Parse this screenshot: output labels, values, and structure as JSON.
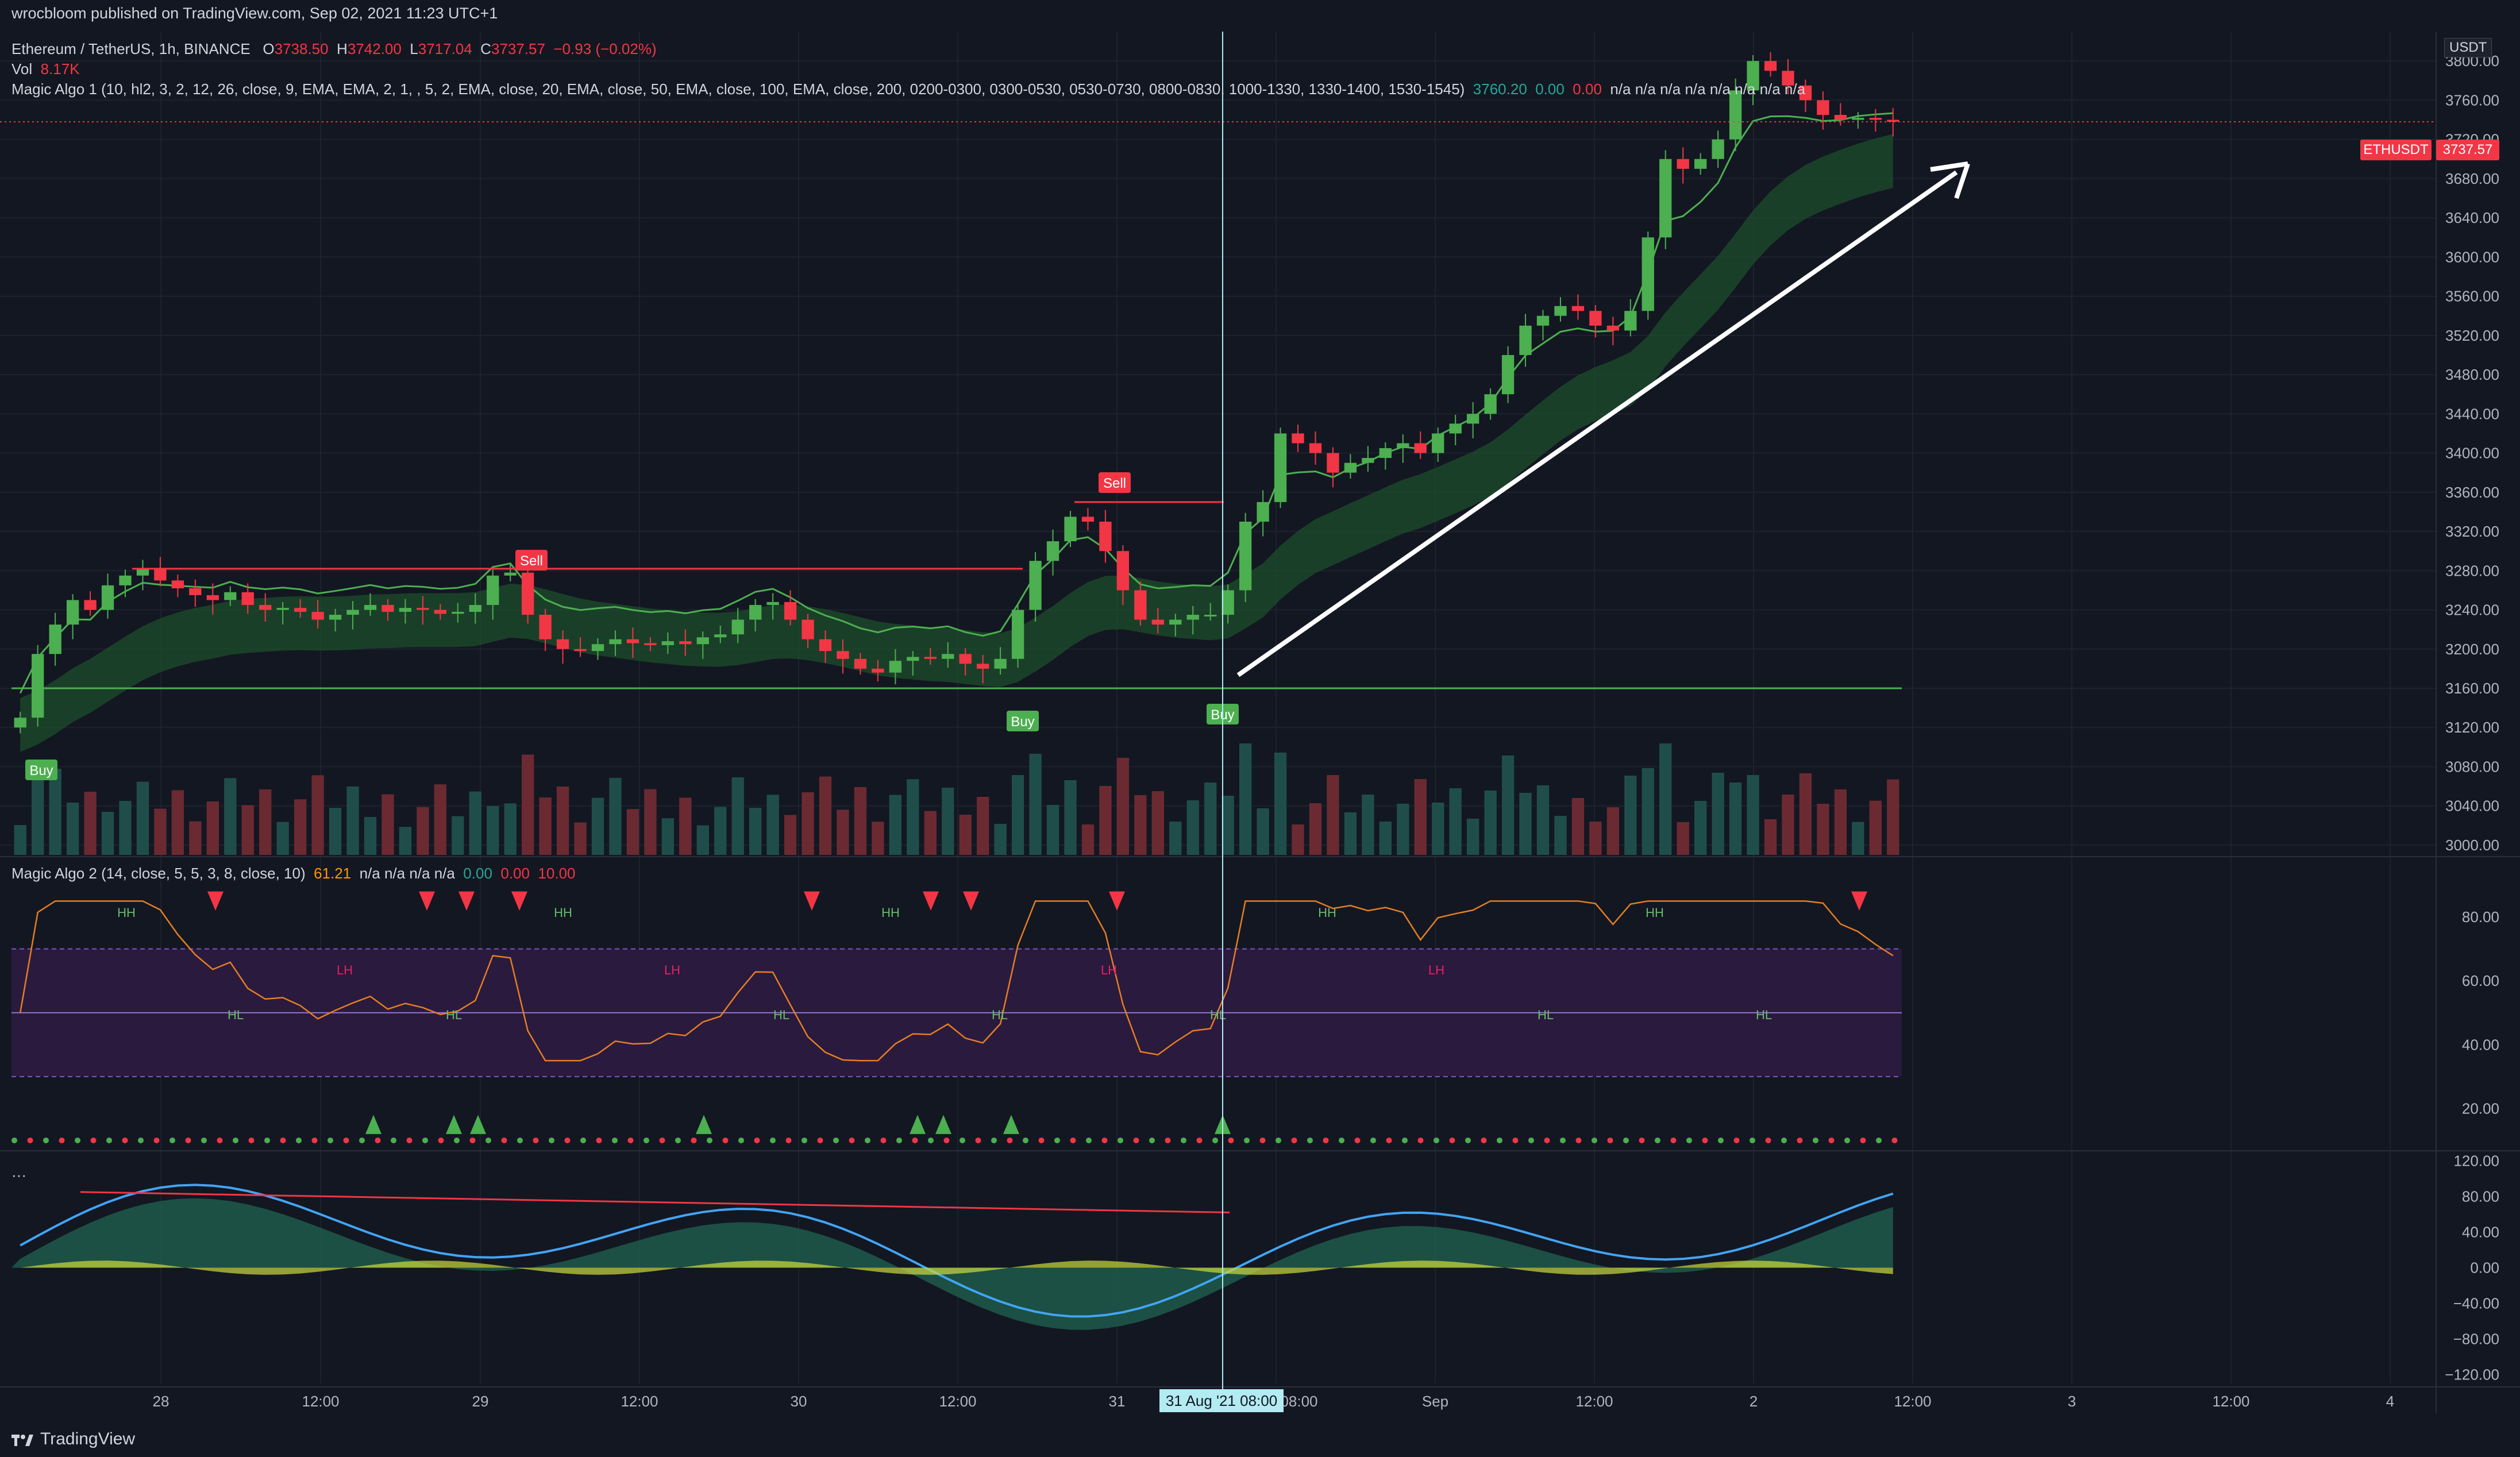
{
  "publisher_line": "wrocbloom published on TradingView.com, Sep 02, 2021 11:23 UTC+1",
  "legend": {
    "symbol": "Ethereum / TetherUS, 1h, BINANCE",
    "o_label": "O",
    "o_val": "3738.50",
    "h_label": "H",
    "h_val": "3742.00",
    "l_label": "L",
    "l_val": "3717.04",
    "c_label": "C",
    "c_val": "3737.57",
    "change": "−0.93 (−0.02%)",
    "vol_label": "Vol",
    "vol_val": "8.17K",
    "algo1": "Magic Algo 1 (10, hl2, 3, 2, 12, 26, close, 9, EMA, EMA, 2, 1, , 5, 2, EMA, close, 20, EMA, close, 50, EMA, close, 100, EMA, close, 200, 0200-0300, 0300-0530, 0530-0730, 0800-0830, 1000-1330, 1330-1400, 1530-1545)",
    "algo1_v1": "3760.20",
    "algo1_v2": "0.00",
    "algo1_v3": "0.00",
    "algo1_na": "n/a n/a n/a n/a n/a n/a n/a n/a",
    "algo2": "Magic Algo 2 (14, close, 5, 5, 3, 8, close, 10)",
    "algo2_v1": "61.21",
    "algo2_na": "n/a n/a n/a n/a",
    "algo2_v2": "0.00",
    "algo2_v3": "0.00",
    "algo2_v4": "10.00",
    "more": "···"
  },
  "brand": "TradingView",
  "currency": "USDT",
  "ticker_label": "ETHUSDT",
  "last_price": "3737.57",
  "crosshair_label": "31 Aug '21   08:00",
  "colors": {
    "bull": "#26a69a",
    "bear": "#ef5350",
    "candle_up": "#4caf50",
    "candle_down": "#f23645",
    "bg": "#131722",
    "grid": "#1e222d",
    "purple": "#2a1a3e"
  },
  "chart_data": {
    "type": "candlestick",
    "symbol": "ETHUSDT",
    "interval": "1h",
    "price_axis": {
      "ticks": [
        3000,
        3040,
        3080,
        3120,
        3160,
        3200,
        3240,
        3280,
        3320,
        3360,
        3400,
        3440,
        3480,
        3520,
        3560,
        3600,
        3640,
        3680,
        3720,
        3760,
        3800
      ],
      "ylim": [
        2990,
        3830
      ]
    },
    "time_axis": {
      "ticks": [
        "28",
        "12:00",
        "29",
        "12:00",
        "30",
        "12:00",
        "31",
        "08:00",
        "Sep",
        "12:00",
        "2",
        "12:00",
        "3",
        "12:00",
        "4"
      ]
    },
    "close_series": [
      3130,
      3195,
      3225,
      3250,
      3240,
      3265,
      3275,
      3282,
      3270,
      3262,
      3255,
      3250,
      3258,
      3245,
      3240,
      3242,
      3238,
      3230,
      3235,
      3240,
      3245,
      3238,
      3242,
      3240,
      3236,
      3238,
      3245,
      3275,
      3278,
      3235,
      3210,
      3200,
      3198,
      3205,
      3210,
      3206,
      3204,
      3208,
      3205,
      3212,
      3215,
      3230,
      3245,
      3248,
      3230,
      3210,
      3198,
      3190,
      3180,
      3176,
      3188,
      3192,
      3190,
      3195,
      3185,
      3180,
      3190,
      3240,
      3290,
      3310,
      3335,
      3330,
      3300,
      3260,
      3230,
      3225,
      3230,
      3235,
      3235,
      3260,
      3330,
      3350,
      3420,
      3410,
      3400,
      3380,
      3390,
      3395,
      3405,
      3410,
      3400,
      3420,
      3430,
      3440,
      3460,
      3500,
      3530,
      3540,
      3550,
      3545,
      3530,
      3525,
      3545,
      3620,
      3700,
      3690,
      3700,
      3720,
      3770,
      3800,
      3790,
      3775,
      3760,
      3745,
      3740,
      3742,
      3740,
      3738
    ],
    "levels": [
      {
        "label": "Sell",
        "value": 3282
      },
      {
        "label": "Sell",
        "value": 3350
      },
      {
        "label": "Buy",
        "value": 3160
      },
      {
        "label": "Buy",
        "value": 3160
      }
    ],
    "volume_axis": {
      "note": "volume histogram"
    },
    "oscillator_axis": {
      "ticks": [
        20,
        40,
        60,
        80
      ],
      "band": [
        30,
        70
      ]
    },
    "oscillator_labels": [
      "HH",
      "HL",
      "LH",
      "HL",
      "HH",
      "LH",
      "HL",
      "HH",
      "HL",
      "LH",
      "HL",
      "HH",
      "LH",
      "HL",
      "HH",
      "HL"
    ],
    "wave_axis": {
      "ticks": [
        120,
        80,
        40,
        0,
        -40,
        -80,
        -120
      ]
    },
    "buy_signals": [
      "Buy",
      "Buy"
    ],
    "sell_signals": [
      "Sell",
      "Sell"
    ],
    "level_labels": [
      "Sell",
      "Sell",
      "Buy",
      "Buy",
      "Buy"
    ]
  }
}
